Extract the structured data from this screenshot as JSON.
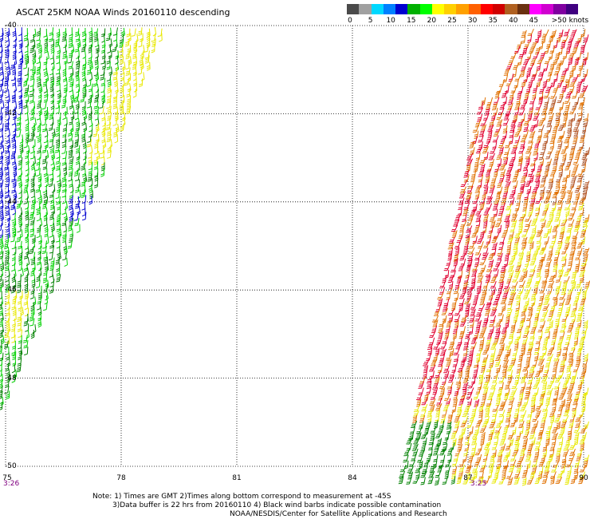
{
  "title": "ASCAT 25KM NOAA Winds 20160110 descending",
  "legend": {
    "units_label": ">50 knots",
    "labels": [
      "0",
      "5",
      "10",
      "15",
      "20",
      "25",
      "30",
      "35",
      "40",
      "45"
    ],
    "colors": [
      "#4a4a4a",
      "#a0a0a0",
      "#00d8ff",
      "#0080ff",
      "#0000d0",
      "#00b000",
      "#00ff00",
      "#ffff00",
      "#ffd000",
      "#ffa000",
      "#ff6000",
      "#ff0000",
      "#d00000",
      "#b06020",
      "#6a3010",
      "#ff00ff",
      "#d000d0",
      "#8000a0",
      "#400080"
    ]
  },
  "axes": {
    "lat_labels": [
      "-40",
      "-42",
      "-44",
      "-46",
      "-48",
      "-50"
    ],
    "lon_labels": [
      "75",
      "78",
      "81",
      "84",
      "87",
      "90"
    ],
    "lat_range": [
      -50,
      -40
    ],
    "lon_range": [
      75,
      90
    ],
    "grid": "dotted"
  },
  "swath_times": {
    "left": "3:26",
    "right": "3:25"
  },
  "notes": [
    "Note: 1) Times are GMT 2)Times along bottom correspond to measurement at -45S",
    "3)Data buffer is 22 hrs from 20160110 4) Black wind barbs indicate possible contamination",
    "NOAA/NESDIS/Center for Satellite Applications and Research"
  ],
  "barb_colors": {
    "blue": "#0000d0",
    "dark_green": "#008000",
    "green": "#00d000",
    "yellow": "#e8e800",
    "orange": "#e07000",
    "red": "#e00030",
    "brown": "#b05020"
  }
}
